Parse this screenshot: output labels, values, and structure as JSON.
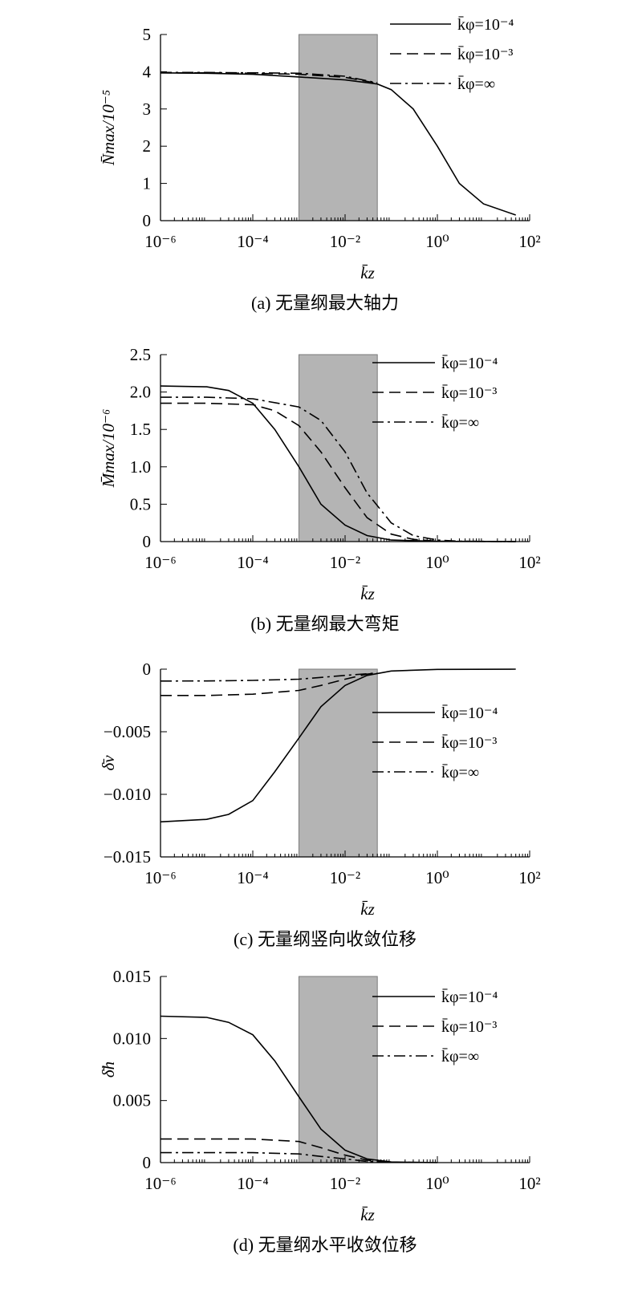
{
  "figure": {
    "highlight_band_colors": {
      "fill": "#b4b4b4",
      "edge": "#7a7a7a"
    },
    "line_color": "#000000"
  },
  "chart_data": [
    {
      "type": "line",
      "caption": "(a) 无量纲最大轴力",
      "xlabel": "k̄z",
      "ylabel": "N̄max/10⁻⁵",
      "x_scale": "log",
      "xlim": [
        1e-06,
        100
      ],
      "ylim": [
        0,
        5
      ],
      "x_ticks": [
        1e-06,
        0.0001,
        0.01,
        1,
        100
      ],
      "x_tick_labels": [
        "10⁻⁶",
        "10⁻⁴",
        "10⁻²",
        "10⁰",
        "10²"
      ],
      "y_ticks": [
        0,
        1,
        2,
        3,
        4,
        5
      ],
      "y_tick_labels": [
        "0",
        "1",
        "2",
        "3",
        "4",
        "5"
      ],
      "highlight_x": [
        0.001,
        0.05
      ],
      "legend_position": "top-right",
      "series": [
        {
          "name": "k̄φ=10⁻⁴",
          "dash": "solid",
          "x": [
            1e-06,
            1e-05,
            0.0001,
            0.001,
            0.01,
            0.05,
            0.1,
            0.3,
            1,
            3,
            10,
            50
          ],
          "y": [
            3.97,
            3.96,
            3.93,
            3.86,
            3.78,
            3.67,
            3.52,
            3.0,
            2.0,
            1.0,
            0.45,
            0.15
          ]
        },
        {
          "name": "k̄φ=10⁻³",
          "dash": "dashed",
          "x": [
            1e-06,
            1e-05,
            0.0001,
            0.001,
            0.01,
            0.05
          ],
          "y": [
            3.97,
            3.97,
            3.96,
            3.93,
            3.85,
            3.69
          ]
        },
        {
          "name": "k̄φ=∞",
          "dash": "dashdot",
          "x": [
            1e-06,
            1e-05,
            0.0001,
            0.001,
            0.01,
            0.05
          ],
          "y": [
            3.98,
            3.98,
            3.97,
            3.96,
            3.88,
            3.7
          ]
        }
      ]
    },
    {
      "type": "line",
      "caption": "(b) 无量纲最大弯矩",
      "xlabel": "k̄z",
      "ylabel": "M̄max/10⁻⁶",
      "x_scale": "log",
      "xlim": [
        1e-06,
        100
      ],
      "ylim": [
        0,
        2.5
      ],
      "x_ticks": [
        1e-06,
        0.0001,
        0.01,
        1,
        100
      ],
      "x_tick_labels": [
        "10⁻⁶",
        "10⁻⁴",
        "10⁻²",
        "10⁰",
        "10²"
      ],
      "y_ticks": [
        0,
        0.5,
        1.0,
        1.5,
        2.0,
        2.5
      ],
      "y_tick_labels": [
        "0",
        "0.5",
        "1.0",
        "1.5",
        "2.0",
        "2.5"
      ],
      "highlight_x": [
        0.001,
        0.05
      ],
      "legend_position": "top-right",
      "series": [
        {
          "name": "k̄φ=10⁻⁴",
          "dash": "solid",
          "x": [
            1e-06,
            1e-05,
            3e-05,
            0.0001,
            0.0003,
            0.001,
            0.003,
            0.01,
            0.03,
            0.1,
            1,
            50
          ],
          "y": [
            2.08,
            2.07,
            2.02,
            1.85,
            1.5,
            1.0,
            0.5,
            0.22,
            0.08,
            0.02,
            0.003,
            0.0
          ]
        },
        {
          "name": "k̄φ=10⁻³",
          "dash": "dashed",
          "x": [
            1e-06,
            1e-05,
            0.0001,
            0.0003,
            0.001,
            0.003,
            0.01,
            0.03,
            0.1,
            0.3,
            1,
            50
          ],
          "y": [
            1.85,
            1.85,
            1.83,
            1.75,
            1.55,
            1.2,
            0.72,
            0.32,
            0.1,
            0.03,
            0.005,
            0.0
          ]
        },
        {
          "name": "k̄φ=∞",
          "dash": "dashdot",
          "x": [
            1e-06,
            1e-05,
            0.0001,
            0.001,
            0.003,
            0.01,
            0.03,
            0.1,
            0.3,
            1,
            3,
            50
          ],
          "y": [
            1.93,
            1.93,
            1.91,
            1.8,
            1.62,
            1.2,
            0.65,
            0.25,
            0.08,
            0.02,
            0.005,
            0.0
          ]
        }
      ]
    },
    {
      "type": "line",
      "caption": "(c) 无量纲竖向收敛位移",
      "xlabel": "k̄z",
      "ylabel": "δ̄v",
      "x_scale": "log",
      "xlim": [
        1e-06,
        100
      ],
      "ylim": [
        -0.015,
        0
      ],
      "x_ticks": [
        1e-06,
        0.0001,
        0.01,
        1,
        100
      ],
      "x_tick_labels": [
        "10⁻⁶",
        "10⁻⁴",
        "10⁻²",
        "10⁰",
        "10²"
      ],
      "y_ticks": [
        -0.015,
        -0.01,
        -0.005,
        0
      ],
      "y_tick_labels": [
        "−0.015",
        "−0.010",
        "−0.005",
        "0"
      ],
      "highlight_x": [
        0.001,
        0.05
      ],
      "legend_position": "center-right",
      "series": [
        {
          "name": "k̄φ=10⁻⁴",
          "dash": "solid",
          "x": [
            1e-06,
            1e-05,
            3e-05,
            0.0001,
            0.0003,
            0.001,
            0.003,
            0.01,
            0.03,
            0.1,
            1,
            50
          ],
          "y": [
            -0.0122,
            -0.012,
            -0.0116,
            -0.0105,
            -0.0082,
            -0.0055,
            -0.003,
            -0.0013,
            -0.0005,
            -0.00015,
            -2e-05,
            0.0
          ]
        },
        {
          "name": "k̄φ=10⁻³",
          "dash": "dashed",
          "x": [
            1e-06,
            1e-05,
            0.0001,
            0.001,
            0.003,
            0.01,
            0.03,
            0.05
          ],
          "y": [
            -0.0021,
            -0.0021,
            -0.002,
            -0.0017,
            -0.0013,
            -0.0008,
            -0.0004,
            -0.0003
          ]
        },
        {
          "name": "k̄φ=∞",
          "dash": "dashdot",
          "x": [
            1e-06,
            1e-05,
            0.0001,
            0.001,
            0.01,
            0.05
          ],
          "y": [
            -0.00095,
            -0.00094,
            -0.0009,
            -0.0008,
            -0.0005,
            -0.0003
          ]
        }
      ]
    },
    {
      "type": "line",
      "caption": "(d) 无量纲水平收敛位移",
      "xlabel": "k̄z",
      "ylabel": "δ̄h",
      "x_scale": "log",
      "xlim": [
        1e-06,
        100
      ],
      "ylim": [
        0,
        0.015
      ],
      "x_ticks": [
        1e-06,
        0.0001,
        0.01,
        1,
        100
      ],
      "x_tick_labels": [
        "10⁻⁶",
        "10⁻⁴",
        "10⁻²",
        "10⁰",
        "10²"
      ],
      "y_ticks": [
        0,
        0.005,
        0.01,
        0.015
      ],
      "y_tick_labels": [
        "0",
        "0.005",
        "0.010",
        "0.015"
      ],
      "highlight_x": [
        0.001,
        0.05
      ],
      "legend_position": "top-right",
      "series": [
        {
          "name": "k̄φ=10⁻⁴",
          "dash": "solid",
          "x": [
            1e-06,
            1e-05,
            3e-05,
            0.0001,
            0.0003,
            0.001,
            0.003,
            0.01,
            0.03,
            0.1,
            1
          ],
          "y": [
            0.0118,
            0.0117,
            0.0113,
            0.0103,
            0.0082,
            0.0053,
            0.0027,
            0.001,
            0.0003,
            5e-05,
            0.0
          ]
        },
        {
          "name": "k̄φ=10⁻³",
          "dash": "dashed",
          "x": [
            1e-06,
            1e-05,
            0.0001,
            0.001,
            0.003,
            0.01,
            0.03,
            0.1
          ],
          "y": [
            0.0019,
            0.0019,
            0.0019,
            0.0017,
            0.0012,
            0.0006,
            0.0002,
            3e-05
          ]
        },
        {
          "name": "k̄φ=∞",
          "dash": "dashdot",
          "x": [
            1e-06,
            1e-05,
            0.0001,
            0.001,
            0.003,
            0.01,
            0.03,
            0.1
          ],
          "y": [
            0.0008,
            0.0008,
            0.0008,
            0.0007,
            0.0005,
            0.0003,
            0.0001,
            2e-05
          ]
        }
      ]
    }
  ]
}
